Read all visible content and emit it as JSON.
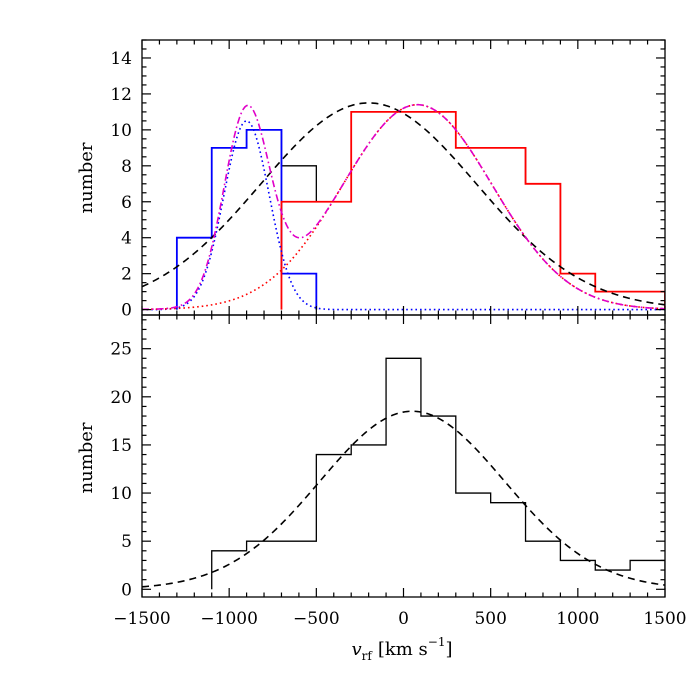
{
  "chart_data": [
    {
      "type": "histogram",
      "panel": "top",
      "title": "",
      "xlabel": "",
      "ylabel": "number",
      "xlim": [
        -1500,
        1500
      ],
      "ylim": [
        -0.3,
        15
      ],
      "xticks": [
        -1500,
        -1000,
        -500,
        0,
        500,
        1000,
        1500
      ],
      "yticks": [
        0,
        2,
        4,
        6,
        8,
        10,
        12,
        14
      ],
      "ytick_labels": [
        "0",
        "2",
        "4",
        "6",
        "8",
        "10",
        "12",
        "14"
      ],
      "bin_edges": [
        -1300,
        -1100,
        -900,
        -700,
        -500,
        -300,
        -100,
        100,
        300,
        500,
        700,
        900,
        1100,
        1300,
        1500
      ],
      "histograms": [
        {
          "color": "#000000",
          "counts": [
            4,
            9,
            10,
            8,
            6,
            11,
            11,
            11,
            9,
            9,
            7,
            2,
            1,
            1
          ]
        },
        {
          "color": "#0000ff",
          "counts": [
            4,
            9,
            10,
            2
          ]
        },
        {
          "color": "#ff0000",
          "start": -700,
          "counts": [
            6,
            6,
            11,
            11,
            11,
            9,
            9,
            7,
            2,
            1,
            1
          ]
        }
      ],
      "curves": [
        {
          "style": "dashed",
          "color": "#000000",
          "components": [
            {
              "amp": 11.5,
              "mu": -200,
              "sigma": 620
            }
          ]
        },
        {
          "style": "dotted",
          "color": "#0000ff",
          "components": [
            {
              "amp": 10.5,
              "mu": -900,
              "sigma": 130
            }
          ]
        },
        {
          "style": "dotted",
          "color": "#ff0000",
          "components": [
            {
              "amp": 11.4,
              "mu": 80,
              "sigma": 430
            }
          ]
        },
        {
          "style": "dashdot",
          "color": "#e000c8",
          "components": [
            {
              "amp": 10.5,
              "mu": -900,
              "sigma": 130
            },
            {
              "amp": 11.4,
              "mu": 80,
              "sigma": 430
            }
          ]
        }
      ]
    },
    {
      "type": "histogram",
      "panel": "bottom",
      "title": "",
      "xlabel": "v_rf [km s^-1]",
      "ylabel": "number",
      "xlim": [
        -1500,
        1500
      ],
      "ylim": [
        -0.8,
        28.5
      ],
      "xticks": [
        -1500,
        -1000,
        -500,
        0,
        500,
        1000,
        1500
      ],
      "xtick_labels": [
        "−1500",
        "−1000",
        "−500",
        "0",
        "500",
        "1000",
        "1500"
      ],
      "yticks": [
        0,
        5,
        10,
        15,
        20,
        25
      ],
      "ytick_labels": [
        "0",
        "5",
        "10",
        "15",
        "20",
        "25"
      ],
      "bin_edges": [
        -1100,
        -900,
        -700,
        -500,
        -300,
        -100,
        100,
        300,
        500,
        700,
        900,
        1100,
        1300,
        1500
      ],
      "histograms": [
        {
          "color": "#000000",
          "counts": [
            4,
            5,
            5,
            14,
            15,
            24,
            18,
            10,
            9,
            5,
            3,
            2,
            3
          ]
        }
      ],
      "curves": [
        {
          "style": "dashed",
          "color": "#000000",
          "components": [
            {
              "amp": 18.5,
              "mu": 50,
              "sigma": 530
            }
          ]
        }
      ]
    }
  ],
  "labels": {
    "top_ylabel": "number",
    "bottom_ylabel": "number",
    "xlabel_v": "v",
    "xlabel_sub": "rf",
    "xlabel_units_open": "[km s",
    "xlabel_units_exp": "−1",
    "xlabel_units_close": "]"
  }
}
